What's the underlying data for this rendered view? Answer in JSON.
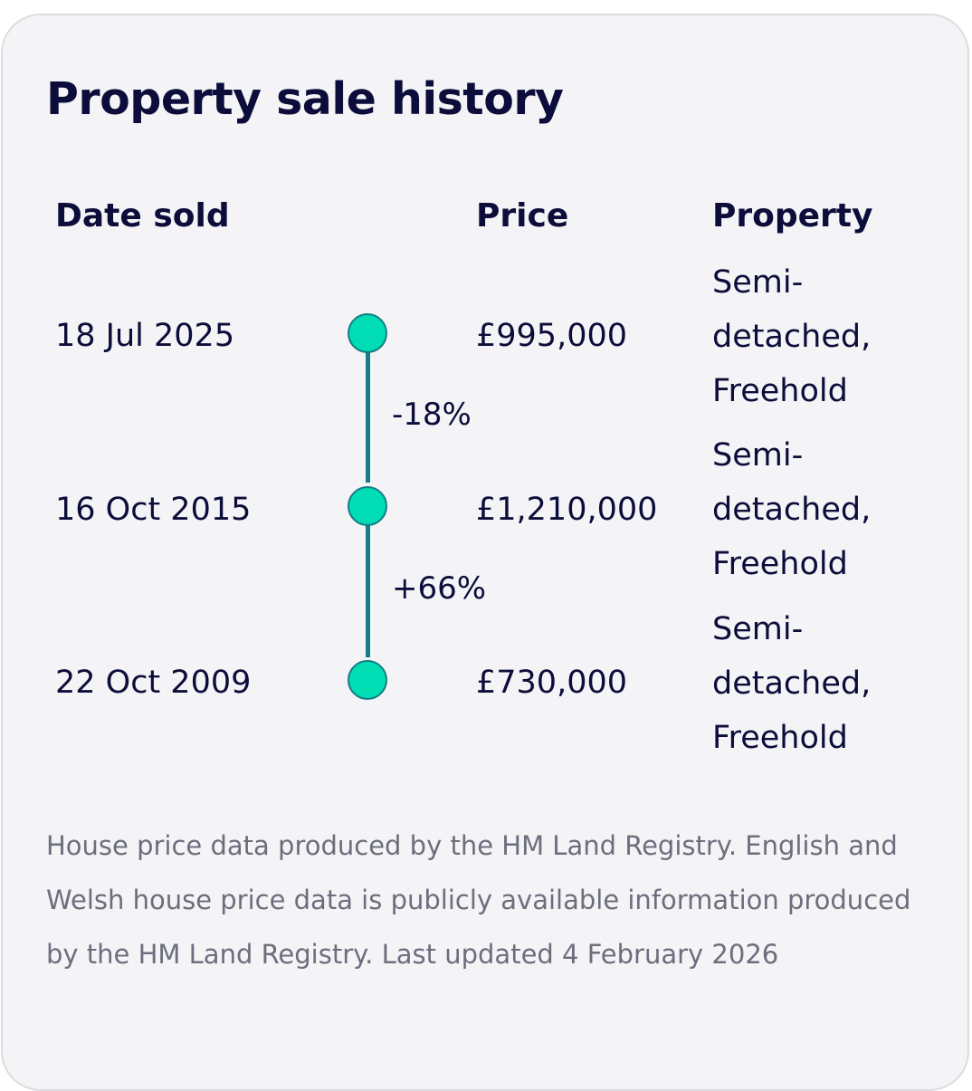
{
  "card": {
    "title": "Property sale history",
    "columns": {
      "date": "Date sold",
      "price": "Price",
      "property": "Property"
    },
    "sales": [
      {
        "date": "18 Jul 2025",
        "price": "£995,000",
        "property_lines": [
          "Semi-",
          "detached,",
          "Freehold"
        ]
      },
      {
        "date": "16 Oct 2015",
        "price": "£1,210,000",
        "property_lines": [
          "Semi-",
          "detached,",
          "Freehold"
        ]
      },
      {
        "date": "22 Oct 2009",
        "price": "£730,000",
        "property_lines": [
          "Semi-",
          "detached,",
          "Freehold"
        ]
      }
    ],
    "changes": [
      "-18%",
      "+66%"
    ],
    "footer": "House price data produced by the HM Land Registry. English and Welsh house price data is publicly available information produced by the HM Land Registry. Last updated 4 February 2026"
  },
  "colors": {
    "dot_fill": "#00dcb3",
    "connector": "#157d88",
    "text": "#0c0d3a",
    "muted_text": "#6c6e7d",
    "card_background": "#f4f4f6"
  },
  "icons": {
    "timeline_marker": "filled-circle"
  }
}
